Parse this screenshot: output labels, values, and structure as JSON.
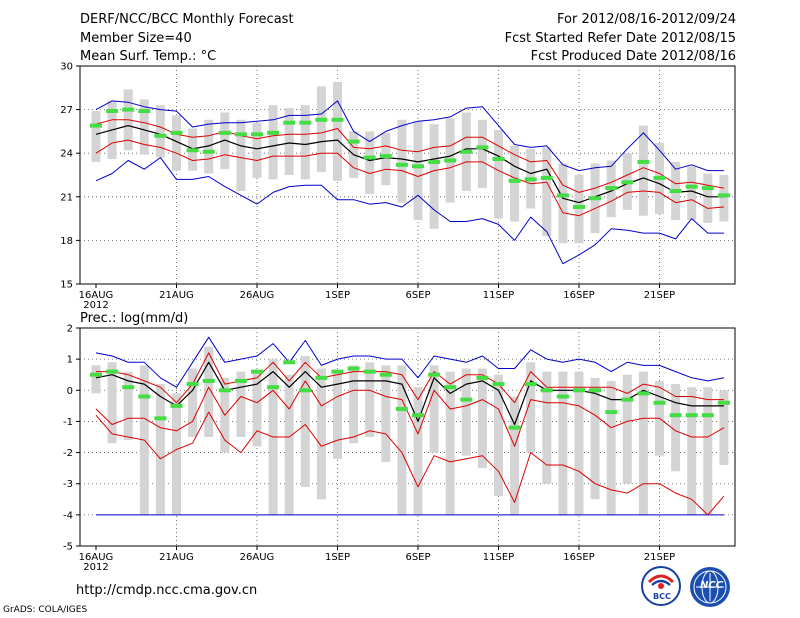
{
  "header": {
    "title": "DERF/NCC/BCC Monthly Forecast",
    "member_size": "Member Size=40",
    "variable": "Mean Surf. Temp.: °C",
    "forecast_period": "For 2012/08/16-2012/09/24",
    "started_refer": "Fcst Started Refer Date 2012/08/15",
    "produced": "Fcst Produced Date 2012/08/16"
  },
  "footer": {
    "url": "http://cmdp.ncc.cma.gov.cn",
    "grads": "GrADS: COLA/IGES",
    "logo_bcc": "BCC",
    "logo_ncc": "NCC"
  },
  "colors": {
    "ensemble_mean": "#000000",
    "spread_band": "#dd0000",
    "min_max": "#0000cc",
    "member_box": "#d4d4d4",
    "median_marker": "#44dd44"
  },
  "chart_data": [
    {
      "type": "line",
      "name": "temperature",
      "title": "Mean Surf. Temp.: °C",
      "ylabel": "°C",
      "ylim": [
        15,
        30
      ],
      "yticks": [
        15,
        18,
        21,
        24,
        27,
        30
      ],
      "xtick_labels": [
        "16AUG",
        "21AUG",
        "26AUG",
        "1SEP",
        "6SEP",
        "11SEP",
        "16SEP",
        "21SEP"
      ],
      "xtick_index": [
        0,
        5,
        10,
        15,
        20,
        25,
        30,
        35
      ],
      "year_label": "2012",
      "grid": true,
      "series": [
        {
          "name": "ensemble_mean",
          "values": [
            25.3,
            25.6,
            25.9,
            25.6,
            25.3,
            24.8,
            24.3,
            24.5,
            24.9,
            24.5,
            24.3,
            24.5,
            24.7,
            24.6,
            24.8,
            24.9,
            23.9,
            23.5,
            23.7,
            23.6,
            23.4,
            23.6,
            23.8,
            24.3,
            24.3,
            23.8,
            23.1,
            22.6,
            22.9,
            20.9,
            20.6,
            21.0,
            21.4,
            21.9,
            22.3,
            21.9,
            21.3,
            21.4,
            21.0,
            21.0
          ]
        },
        {
          "name": "upper_band",
          "values": [
            26.0,
            26.3,
            26.3,
            26.1,
            25.8,
            25.3,
            25.1,
            25.2,
            25.5,
            25.2,
            25.0,
            25.2,
            25.3,
            25.3,
            25.4,
            25.7,
            24.4,
            24.3,
            24.5,
            24.2,
            24.1,
            24.4,
            24.5,
            25.1,
            25.1,
            24.5,
            23.9,
            23.4,
            23.5,
            21.8,
            21.3,
            21.6,
            22.0,
            22.5,
            23.0,
            22.6,
            21.9,
            22.0,
            21.8,
            21.6
          ]
        },
        {
          "name": "lower_band",
          "values": [
            24.0,
            24.7,
            24.9,
            24.6,
            24.4,
            24.0,
            23.5,
            23.6,
            23.9,
            23.7,
            23.5,
            23.8,
            23.8,
            23.8,
            24.0,
            24.0,
            23.0,
            22.6,
            22.9,
            22.8,
            22.4,
            22.8,
            23.0,
            23.4,
            23.4,
            22.8,
            22.3,
            21.9,
            22.0,
            19.9,
            19.7,
            20.2,
            20.7,
            21.3,
            21.4,
            21.3,
            20.6,
            20.8,
            20.2,
            20.3
          ]
        },
        {
          "name": "maximum",
          "values": [
            27.0,
            27.6,
            27.5,
            27.2,
            27.0,
            26.9,
            25.8,
            26.0,
            26.1,
            26.1,
            26.2,
            26.3,
            26.6,
            26.6,
            26.7,
            27.6,
            25.5,
            24.8,
            25.5,
            25.9,
            26.2,
            26.3,
            26.5,
            27.1,
            27.2,
            25.9,
            24.6,
            24.4,
            24.5,
            23.2,
            22.8,
            23.0,
            23.1,
            24.3,
            25.4,
            24.2,
            22.9,
            23.2,
            22.8,
            22.8
          ]
        },
        {
          "name": "minimum",
          "values": [
            22.1,
            22.6,
            23.5,
            22.9,
            23.7,
            22.2,
            22.2,
            22.4,
            21.7,
            21.1,
            20.5,
            21.3,
            21.7,
            21.8,
            21.8,
            20.8,
            20.8,
            20.5,
            20.6,
            20.3,
            21.1,
            20.1,
            19.3,
            19.3,
            19.5,
            19.1,
            18.0,
            19.6,
            18.6,
            16.4,
            17.0,
            17.7,
            18.8,
            18.7,
            18.5,
            18.5,
            18.1,
            19.5,
            18.5,
            18.5
          ]
        },
        {
          "name": "box_top",
          "values": [
            26.9,
            27.6,
            28.4,
            27.7,
            27.3,
            26.6,
            25.7,
            26.3,
            26.8,
            26.3,
            26.1,
            27.3,
            27.1,
            27.3,
            28.6,
            28.9,
            25.5,
            25.5,
            25.4,
            26.3,
            26.2,
            26.0,
            26.4,
            26.8,
            26.3,
            25.6,
            24.5,
            24.3,
            24.4,
            23.3,
            22.5,
            23.3,
            23.5,
            24.0,
            25.9,
            24.7,
            23.4,
            23.1,
            22.6,
            22.5
          ]
        },
        {
          "name": "box_bottom",
          "values": [
            23.4,
            23.6,
            24.2,
            23.9,
            23.7,
            22.8,
            22.8,
            22.6,
            22.9,
            21.4,
            22.3,
            22.2,
            22.5,
            22.2,
            22.7,
            22.1,
            22.3,
            21.2,
            21.8,
            20.6,
            19.4,
            18.8,
            20.6,
            21.4,
            21.6,
            19.5,
            19.3,
            20.2,
            18.3,
            17.8,
            17.8,
            18.5,
            19.6,
            20.1,
            19.7,
            19.8,
            19.4,
            19.4,
            19.2,
            19.3
          ]
        },
        {
          "name": "median",
          "values": [
            25.9,
            26.9,
            27.0,
            26.9,
            25.2,
            25.4,
            24.2,
            24.1,
            25.4,
            25.3,
            25.3,
            25.4,
            26.1,
            26.1,
            26.3,
            26.3,
            24.8,
            23.7,
            23.8,
            23.2,
            23.1,
            23.4,
            23.5,
            24.1,
            24.4,
            23.6,
            22.1,
            22.2,
            22.3,
            21.1,
            20.3,
            20.9,
            21.6,
            22.0,
            23.4,
            22.3,
            21.4,
            21.7,
            21.6,
            21.1
          ]
        }
      ]
    },
    {
      "type": "line",
      "name": "precipitation",
      "title": "Prec.: log(mm/d)",
      "ylabel": "log(mm/d)",
      "ylim": [
        -5,
        2
      ],
      "yticks": [
        -5,
        -4,
        -3,
        -2,
        -1,
        0,
        1,
        2
      ],
      "xtick_labels": [
        "16AUG",
        "21AUG",
        "26AUG",
        "1SEP",
        "6SEP",
        "11SEP",
        "16SEP",
        "21SEP"
      ],
      "xtick_index": [
        0,
        5,
        10,
        15,
        20,
        25,
        30,
        35
      ],
      "year_label": "2012",
      "grid": true,
      "series": [
        {
          "name": "ensemble_mean",
          "values": [
            0.4,
            0.5,
            0.3,
            0.2,
            -0.2,
            -0.5,
            0.0,
            0.9,
            0.0,
            0.1,
            0.2,
            0.6,
            0.1,
            0.6,
            0.1,
            0.2,
            0.3,
            0.3,
            0.3,
            0.2,
            -1.0,
            0.4,
            -0.1,
            0.2,
            0.3,
            0.0,
            -1.1,
            0.3,
            0.0,
            0.0,
            0.0,
            -0.1,
            -0.3,
            -0.3,
            0.0,
            -0.2,
            -0.4,
            -0.5,
            -0.5,
            -0.5
          ]
        },
        {
          "name": "upper_band",
          "values": [
            0.6,
            0.6,
            0.5,
            0.3,
            0.1,
            -0.4,
            0.2,
            1.2,
            0.2,
            0.3,
            0.4,
            0.9,
            0.3,
            0.9,
            0.4,
            0.5,
            0.6,
            0.6,
            0.6,
            0.5,
            -0.3,
            0.6,
            0.2,
            0.5,
            0.5,
            0.2,
            -0.4,
            0.6,
            0.1,
            0.1,
            0.1,
            0.1,
            0.1,
            -0.1,
            0.2,
            0.1,
            -0.2,
            -0.2,
            -0.3,
            -0.3
          ]
        },
        {
          "name": "lower_band",
          "values": [
            -0.6,
            -1.1,
            -0.9,
            -0.9,
            -1.2,
            -1.3,
            -1.0,
            0.1,
            -0.8,
            -0.2,
            -0.4,
            0.0,
            -0.6,
            0.3,
            -0.5,
            -0.2,
            0.0,
            0.0,
            -0.2,
            -0.3,
            -1.4,
            0.0,
            -0.6,
            -0.5,
            -0.3,
            -0.6,
            -1.8,
            -0.3,
            -0.4,
            -0.4,
            -0.5,
            -0.8,
            -1.2,
            -1.0,
            -0.9,
            -0.9,
            -1.3,
            -1.5,
            -1.5,
            -1.2
          ]
        },
        {
          "name": "upper_band_2",
          "values": [
            -0.8,
            -1.4,
            -1.5,
            -1.6,
            -2.2,
            -1.9,
            -1.7,
            -0.7,
            -1.6,
            -2.0,
            -1.3,
            -1.5,
            -1.5,
            -1.1,
            -1.8,
            -1.6,
            -1.5,
            -1.3,
            -1.4,
            -2.0,
            -3.1,
            -2.1,
            -2.3,
            -2.2,
            -2.1,
            -2.6,
            -3.6,
            -2.0,
            -2.4,
            -2.4,
            -2.6,
            -3.0,
            -3.2,
            -3.3,
            -3.0,
            -3.0,
            -3.3,
            -3.5,
            -4.0,
            -3.4
          ]
        },
        {
          "name": "maximum",
          "values": [
            1.2,
            1.1,
            0.9,
            0.9,
            0.4,
            0.1,
            0.9,
            1.7,
            0.9,
            1.0,
            1.1,
            1.5,
            0.9,
            1.6,
            0.8,
            1.0,
            1.1,
            1.1,
            1.0,
            1.0,
            0.4,
            1.1,
            1.0,
            0.9,
            1.1,
            0.7,
            0.7,
            1.3,
            1.0,
            0.9,
            1.0,
            0.9,
            0.6,
            0.9,
            0.8,
            0.8,
            0.6,
            0.4,
            0.3,
            0.4
          ]
        },
        {
          "name": "minimum",
          "values": [
            -4.0,
            -4.0,
            -4.0,
            -4.0,
            -4.0,
            -4.0,
            -4.0,
            -4.0,
            -4.0,
            -4.0,
            -4.0,
            -4.0,
            -4.0,
            -4.0,
            -4.0,
            -4.0,
            -4.0,
            -4.0,
            -4.0,
            -4.0,
            -4.0,
            -4.0,
            -4.0,
            -4.0,
            -4.0,
            -4.0,
            -4.0,
            -4.0,
            -4.0,
            -4.0,
            -4.0,
            -4.0,
            -4.0,
            -4.0,
            -4.0,
            -4.0,
            -4.0,
            -4.0,
            -4.0,
            -4.0
          ]
        },
        {
          "name": "box_top",
          "values": [
            0.8,
            0.9,
            0.6,
            0.8,
            0.2,
            -0.1,
            0.7,
            1.4,
            0.4,
            0.6,
            0.6,
            1.0,
            0.5,
            1.1,
            0.7,
            0.6,
            0.8,
            0.9,
            0.8,
            0.8,
            0.1,
            0.8,
            0.6,
            0.7,
            0.7,
            0.5,
            -0.2,
            0.9,
            0.6,
            0.6,
            0.6,
            0.4,
            0.3,
            0.5,
            0.6,
            0.3,
            0.2,
            0.1,
            0.1,
            0.0
          ]
        },
        {
          "name": "box_bottom",
          "values": [
            -0.1,
            -1.7,
            -1.6,
            -4.0,
            -4.0,
            -4.0,
            -1.5,
            -1.5,
            -2.0,
            -1.5,
            -1.8,
            -4.0,
            -4.0,
            -3.1,
            -3.5,
            -2.2,
            -1.7,
            -1.5,
            -2.3,
            -4.0,
            -4.0,
            -2.0,
            -4.0,
            -2.1,
            -2.5,
            -3.4,
            -4.0,
            -2.0,
            -3.0,
            -4.0,
            -4.0,
            -3.5,
            -4.0,
            -3.0,
            -4.0,
            -2.1,
            -2.6,
            -4.0,
            -4.0,
            -2.4
          ]
        },
        {
          "name": "median",
          "values": [
            0.5,
            0.6,
            0.1,
            -0.2,
            -0.9,
            -0.5,
            0.2,
            0.3,
            0.0,
            0.3,
            0.6,
            0.1,
            0.9,
            0.0,
            0.4,
            0.6,
            0.7,
            0.6,
            0.5,
            -0.6,
            -0.8,
            0.5,
            0.1,
            -0.3,
            0.4,
            0.2,
            -1.2,
            0.2,
            0.0,
            -0.2,
            0.0,
            0.0,
            -0.7,
            -0.3,
            -0.1,
            -0.4,
            -0.8,
            -0.8,
            -0.8,
            -0.4
          ]
        }
      ]
    }
  ]
}
